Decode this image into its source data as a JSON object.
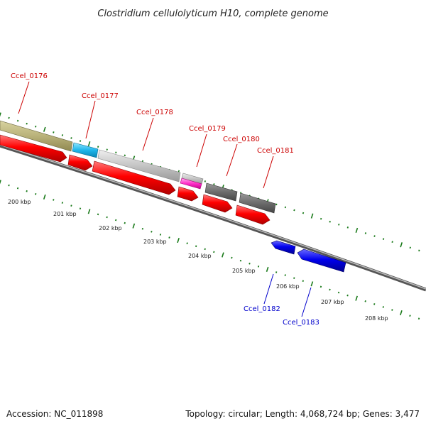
{
  "title": "Clostridium cellulolyticum H10, complete genome",
  "footer": {
    "accession": "Accession: NC_011898",
    "summary": "Topology: circular; Length: 4,068,724 bp; Genes: 3,477"
  },
  "ruler": {
    "labels": [
      "200 kbp",
      "201 kbp",
      "202 kbp",
      "203 kbp",
      "204 kbp",
      "205 kbp",
      "206 kbp",
      "207 kbp",
      "208 kbp"
    ]
  },
  "genes": [
    {
      "label": "Ccel_0176",
      "color": "#cc0000"
    },
    {
      "label": "Ccel_0177",
      "color": "#cc0000"
    },
    {
      "label": "Ccel_0178",
      "color": "#cc0000"
    },
    {
      "label": "Ccel_0179",
      "color": "#cc0000"
    },
    {
      "label": "Ccel_0180",
      "color": "#cc0000"
    },
    {
      "label": "Ccel_0181",
      "color": "#cc0000"
    },
    {
      "label": "Ccel_0182",
      "color": "#0000cc"
    },
    {
      "label": "Ccel_0183",
      "color": "#0000cc"
    }
  ],
  "colors": {
    "forward_cds": "#ff0000",
    "reverse_cds": "#0000ee",
    "tick": "#1a7a1a",
    "backbone": "#777777"
  }
}
